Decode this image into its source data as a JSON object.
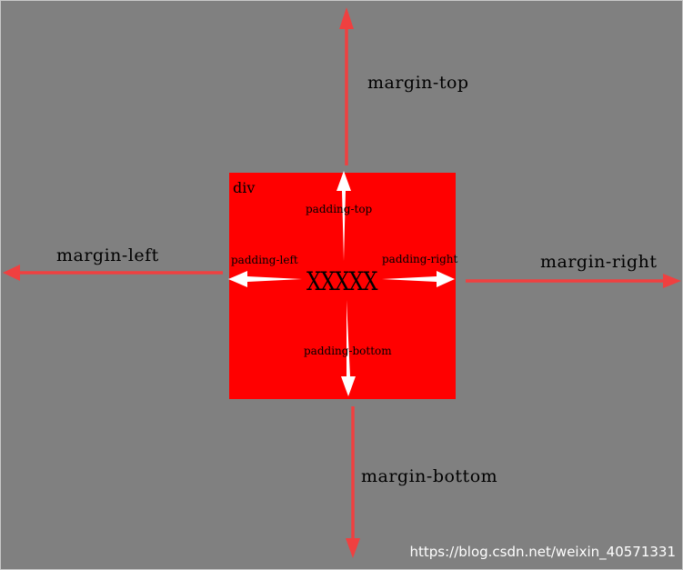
{
  "colors": {
    "background": "#808080",
    "box": "#ff0000",
    "margin_arrow": "#ef4040",
    "padding_arrow": "#ffffff"
  },
  "box": {
    "name": "div",
    "content": "XXXXX"
  },
  "margins": {
    "top": "margin-top",
    "right": "margin-right",
    "bottom": "margin-bottom",
    "left": "margin-left"
  },
  "paddings": {
    "top": "padding-top",
    "right": "padding-right",
    "bottom": "padding-bottom",
    "left": "padding-left"
  },
  "watermark": "https://blog.csdn.net/weixin_40571331"
}
